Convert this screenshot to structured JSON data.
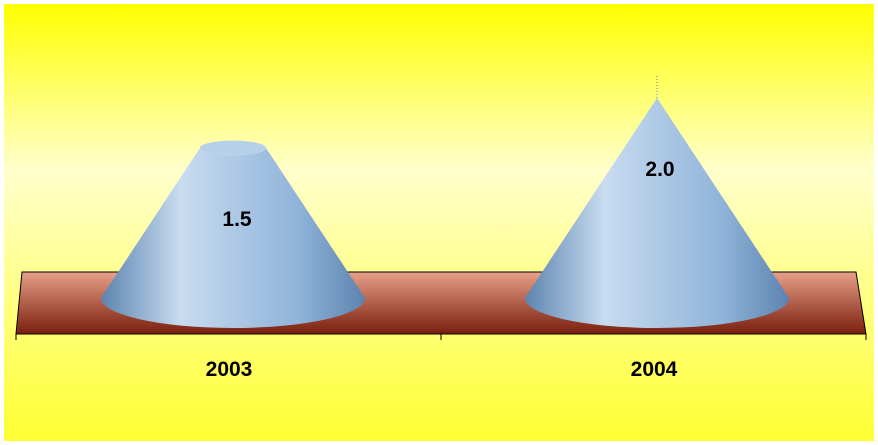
{
  "chart_data": {
    "type": "bar",
    "style": "3d-cone",
    "categories": [
      "2003",
      "2004"
    ],
    "values": [
      1.5,
      2.0
    ],
    "data_labels": [
      "1.5",
      "2.0"
    ],
    "title": "",
    "xlabel": "",
    "ylabel": "",
    "ylim": [
      0,
      2.0
    ],
    "grid": false,
    "legend": "none",
    "colors": {
      "background_top": "#FFFF00",
      "background_mid": "#FFFFCC",
      "background_bottom": "#FFFF33",
      "floor_light": "#E8A088",
      "floor_dark": "#7A1E0E",
      "cone_light": "#C8DCF0",
      "cone_mid": "#8FB3D9",
      "cone_dark": "#5C84B0",
      "cone_top": "#B7D0EA",
      "axis": "#000000",
      "label_text": "#000000"
    }
  }
}
